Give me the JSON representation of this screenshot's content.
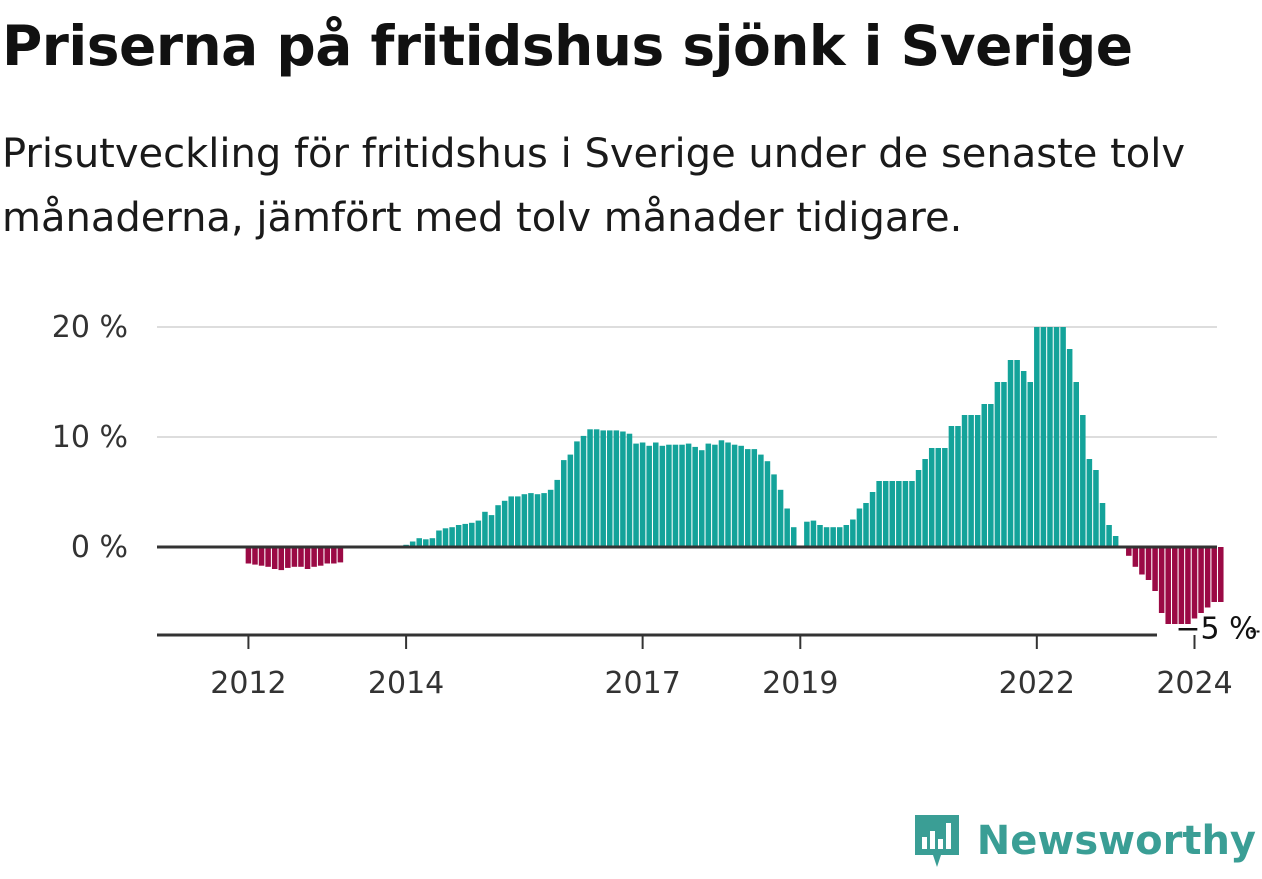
{
  "header": {
    "title": "Priserna på fritidshus sjönk i Sverige",
    "subtitle": "Prisutveckling för fritidshus i Sverige under de senaste tolv månaderna, jämfört med tolv månader tidigare."
  },
  "brand": {
    "name": "Newsworthy",
    "icon": "newsworthy-logo-icon",
    "color": "#3a9e95"
  },
  "colors": {
    "positive": "#14a39a",
    "negative": "#9b0a45",
    "grid": "#dddddd",
    "zero_line": "#333333",
    "axis": "#333333"
  },
  "chart_data": {
    "type": "bar",
    "title": "Priserna på fritidshus sjönk i Sverige",
    "subtitle": "Prisutveckling för fritidshus i Sverige under de senaste tolv månaderna, jämfört med tolv månader tidigare.",
    "xlabel": "",
    "ylabel": "",
    "ylim": [
      -8,
      20
    ],
    "grid": true,
    "legend": "none",
    "y_ticks": [
      {
        "value": 20,
        "label": "20 %"
      },
      {
        "value": 10,
        "label": "10 %"
      },
      {
        "value": 0,
        "label": "0 %"
      }
    ],
    "x_ticks": [
      {
        "index": 6,
        "label": "2012"
      },
      {
        "index": 30,
        "label": "2014"
      },
      {
        "index": 66,
        "label": "2017"
      },
      {
        "index": 90,
        "label": "2019"
      },
      {
        "index": 126,
        "label": "2022"
      },
      {
        "index": 150,
        "label": "2024"
      }
    ],
    "annotations": [
      {
        "index": 150,
        "value": -7.5,
        "label": "−5 %"
      }
    ],
    "values": [
      null,
      null,
      null,
      null,
      null,
      null,
      -1.5,
      -1.6,
      -1.7,
      -1.8,
      -2.0,
      -2.1,
      -1.9,
      -1.8,
      -1.8,
      -2.0,
      -1.8,
      -1.7,
      -1.5,
      -1.5,
      -1.4,
      null,
      null,
      null,
      null,
      null,
      null,
      null,
      null,
      null,
      0.2,
      0.5,
      0.8,
      0.7,
      0.8,
      1.5,
      1.7,
      1.8,
      2.0,
      2.1,
      2.2,
      2.4,
      3.2,
      2.9,
      3.8,
      4.2,
      4.6,
      4.6,
      4.8,
      4.9,
      4.8,
      4.9,
      5.2,
      6.1,
      7.9,
      8.4,
      9.6,
      10.1,
      10.7,
      10.7,
      10.6,
      10.6,
      10.6,
      10.5,
      10.3,
      9.4,
      9.5,
      9.2,
      9.5,
      9.2,
      9.3,
      9.3,
      9.3,
      9.4,
      9.1,
      8.8,
      9.4,
      9.3,
      9.7,
      9.5,
      9.3,
      9.2,
      8.9,
      8.9,
      8.4,
      7.8,
      6.6,
      5.2,
      3.5,
      1.8,
      null,
      2.3,
      2.4,
      2.0,
      1.8,
      1.8,
      1.8,
      2.0,
      2.5,
      3.5,
      4.0,
      5.0,
      6.0,
      6.0,
      6.0,
      6.0,
      6.0,
      6.0,
      7.0,
      8.0,
      9.0,
      9.0,
      9.0,
      11.0,
      11.0,
      12.0,
      12.0,
      12.0,
      13.0,
      13.0,
      15.0,
      15.0,
      17.0,
      17.0,
      16.0,
      15.0,
      20.0,
      20.0,
      20.0,
      20.0,
      20.0,
      18.0,
      15.0,
      12.0,
      8.0,
      7.0,
      4.0,
      2.0,
      1.0,
      null,
      -0.8,
      -1.8,
      -2.5,
      -3.0,
      -4.0,
      -6.0,
      -7.0,
      -7.0,
      -7.0,
      -7.0,
      -6.5,
      -6.0,
      -5.5,
      -5.0,
      -5.0
    ]
  }
}
